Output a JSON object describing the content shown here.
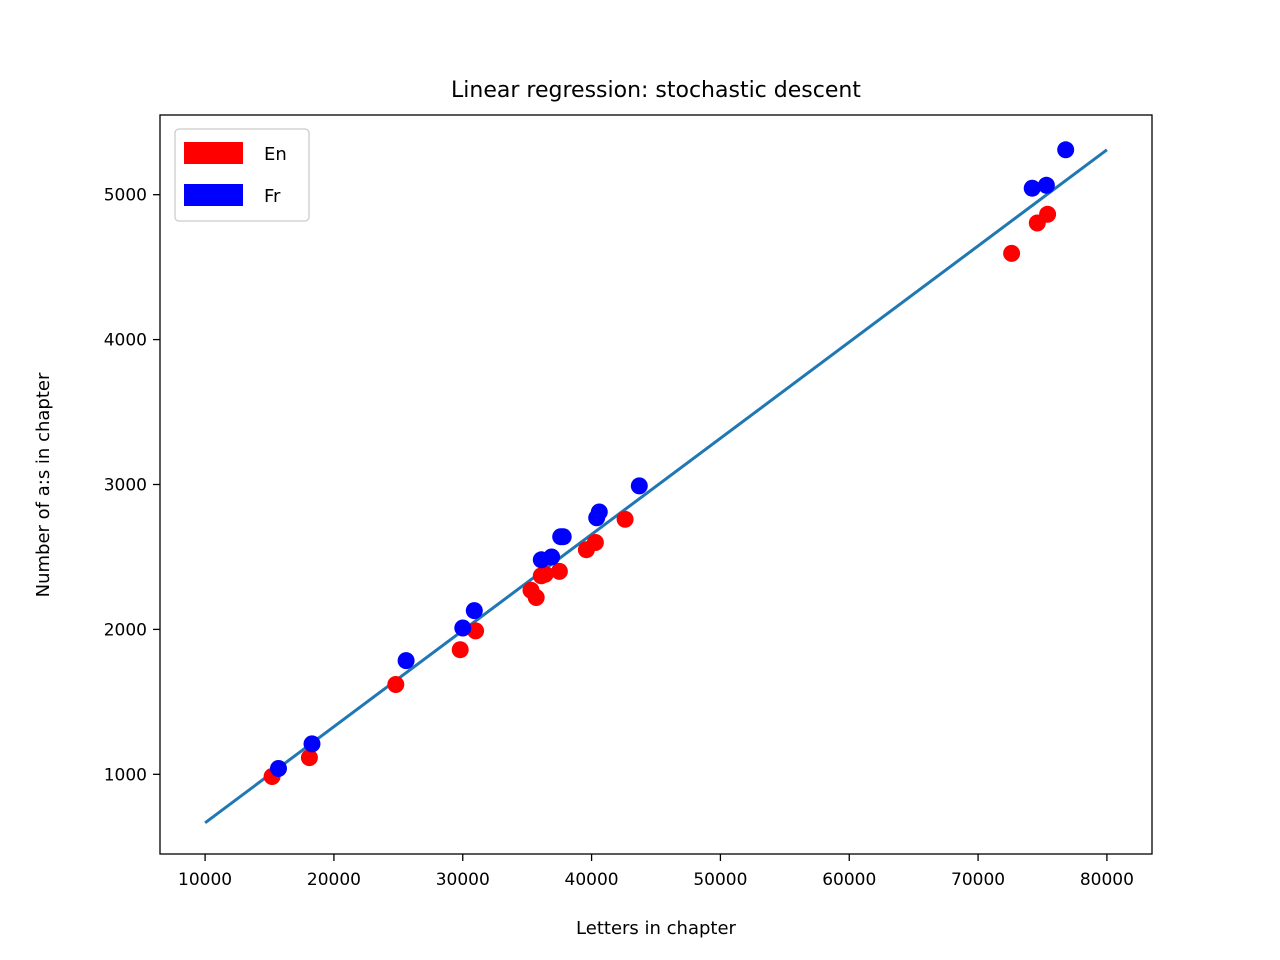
{
  "chart_data": {
    "type": "scatter",
    "title": "Linear regression: stochastic descent",
    "xlabel": "Letters in chapter",
    "ylabel": "Number of a:s in chapter",
    "xlim": [
      6500,
      83500
    ],
    "ylim": [
      450,
      5550
    ],
    "xticks": [
      10000,
      20000,
      30000,
      40000,
      50000,
      60000,
      70000,
      80000
    ],
    "xtick_labels": [
      "10000",
      "20000",
      "30000",
      "40000",
      "50000",
      "60000",
      "70000",
      "80000"
    ],
    "yticks": [
      1000,
      2000,
      3000,
      4000,
      5000
    ],
    "ytick_labels": [
      "1000",
      "2000",
      "3000",
      "4000",
      "5000"
    ],
    "grid": false,
    "legend_position": "upper-left",
    "series": [
      {
        "name": "En",
        "color": "#ff0000",
        "points": [
          [
            15200,
            985
          ],
          [
            18100,
            1115
          ],
          [
            24800,
            1620
          ],
          [
            29800,
            1860
          ],
          [
            31000,
            1990
          ],
          [
            35300,
            2270
          ],
          [
            35700,
            2220
          ],
          [
            36100,
            2370
          ],
          [
            36400,
            2380
          ],
          [
            37500,
            2400
          ],
          [
            39600,
            2550
          ],
          [
            40300,
            2600
          ],
          [
            42600,
            2760
          ],
          [
            72600,
            4595
          ],
          [
            74600,
            4805
          ],
          [
            75400,
            4865
          ]
        ]
      },
      {
        "name": "Fr",
        "color": "#0000ff",
        "points": [
          [
            15700,
            1040
          ],
          [
            18300,
            1210
          ],
          [
            25600,
            1785
          ],
          [
            30000,
            2010
          ],
          [
            30900,
            2130
          ],
          [
            36100,
            2480
          ],
          [
            36900,
            2500
          ],
          [
            37600,
            2640
          ],
          [
            37800,
            2640
          ],
          [
            40400,
            2770
          ],
          [
            40600,
            2810
          ],
          [
            43700,
            2990
          ],
          [
            74200,
            5045
          ],
          [
            75300,
            5065
          ],
          [
            76800,
            5310
          ]
        ]
      },
      {
        "name": "",
        "type": "line",
        "color": "#1f77b4",
        "points": [
          [
            10000,
            665
          ],
          [
            80000,
            5310
          ]
        ]
      }
    ]
  }
}
